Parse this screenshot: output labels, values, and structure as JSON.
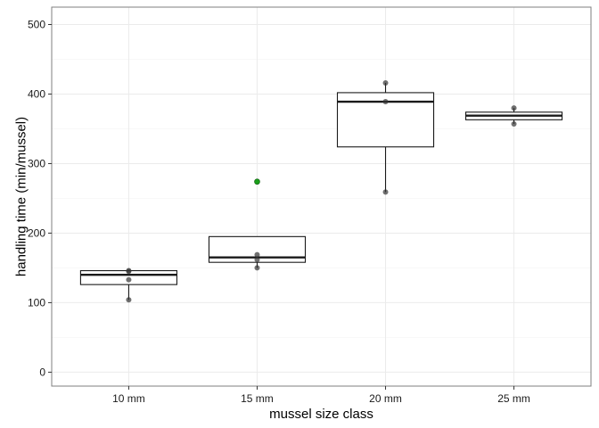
{
  "chart_data": {
    "type": "box",
    "title": "",
    "xlabel": "mussel size class",
    "ylabel": "handling time (min/mussel)",
    "ylim": [
      -20,
      525
    ],
    "y_ticks": [
      0,
      100,
      200,
      300,
      400,
      500
    ],
    "y_tick_labels": [
      "0",
      "100",
      "200",
      "300",
      "400",
      "500"
    ],
    "grid": true,
    "categories": [
      "10 mm",
      "15 mm",
      "20 mm",
      "25 mm"
    ],
    "boxes": [
      {
        "category": "10 mm",
        "lower_whisker": 104,
        "q1": 126,
        "median": 140,
        "q3": 146,
        "upper_whisker": 146
      },
      {
        "category": "15 mm",
        "lower_whisker": 150,
        "q1": 158,
        "median": 165,
        "q3": 195,
        "upper_whisker": 195
      },
      {
        "category": "20 mm",
        "lower_whisker": 259,
        "q1": 324,
        "median": 389,
        "q3": 402,
        "upper_whisker": 416
      },
      {
        "category": "25 mm",
        "lower_whisker": 357,
        "q1": 363,
        "median": 369,
        "q3": 374,
        "upper_whisker": 380
      }
    ],
    "points": [
      {
        "category": "10 mm",
        "y": 146,
        "color": "#333333"
      },
      {
        "category": "10 mm",
        "y": 145,
        "color": "#333333"
      },
      {
        "category": "10 mm",
        "y": 133,
        "color": "#333333"
      },
      {
        "category": "10 mm",
        "y": 104,
        "color": "#333333"
      },
      {
        "category": "15 mm",
        "y": 169,
        "color": "#333333"
      },
      {
        "category": "15 mm",
        "y": 162,
        "color": "#333333"
      },
      {
        "category": "15 mm",
        "y": 150,
        "color": "#333333"
      },
      {
        "category": "15 mm",
        "y": 274,
        "color": "#1a9e1a"
      },
      {
        "category": "20 mm",
        "y": 416,
        "color": "#333333"
      },
      {
        "category": "20 mm",
        "y": 389,
        "color": "#333333"
      },
      {
        "category": "20 mm",
        "y": 259,
        "color": "#333333"
      },
      {
        "category": "25 mm",
        "y": 380,
        "color": "#333333"
      },
      {
        "category": "25 mm",
        "y": 357,
        "color": "#333333"
      }
    ],
    "colors": {
      "background": "#ffffff",
      "panel_border": "#7f7f7f",
      "grid_major": "#ebebeb",
      "grid_minor": "#f5f5f5",
      "box_line": "#1a1a1a",
      "point": "#333333",
      "highlight_point": "#1a9e1a"
    }
  }
}
